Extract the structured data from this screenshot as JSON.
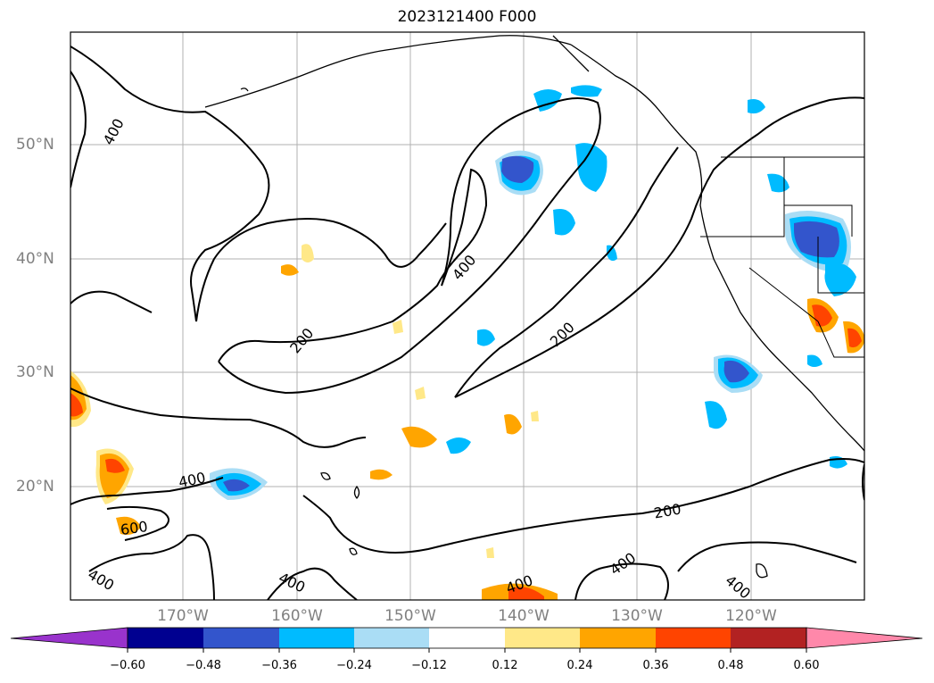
{
  "title": "2023121400 F000",
  "lat_labels": [
    "50°N",
    "40°N",
    "30°N",
    "20°N"
  ],
  "lon_labels": [
    "170°W",
    "160°W",
    "150°W",
    "140°W",
    "130°W",
    "120°W"
  ],
  "colorbar": {
    "ticks": [
      "−0.60",
      "−0.48",
      "−0.36",
      "−0.24",
      "−0.12",
      "0.12",
      "0.24",
      "0.36",
      "0.48",
      "0.60"
    ],
    "colors": [
      "#9933cc",
      "#000090",
      "#3355cc",
      "#00bbff",
      "#aaddf5",
      "#ffffff",
      "#ffe888",
      "#ffa500",
      "#ff4400",
      "#b22222",
      "#ff88aa"
    ]
  },
  "contour_labels": [
    "400",
    "400",
    "200",
    "200",
    "400",
    "400",
    "600",
    "200",
    "400",
    "400",
    "400",
    "400"
  ],
  "colors": {
    "strong_negative": "#3355cc",
    "negative": "#00bbff",
    "weak_negative": "#aaddf5",
    "weak_positive": "#ffe888",
    "positive": "#ffa500",
    "strong_positive": "#ff4400"
  }
}
